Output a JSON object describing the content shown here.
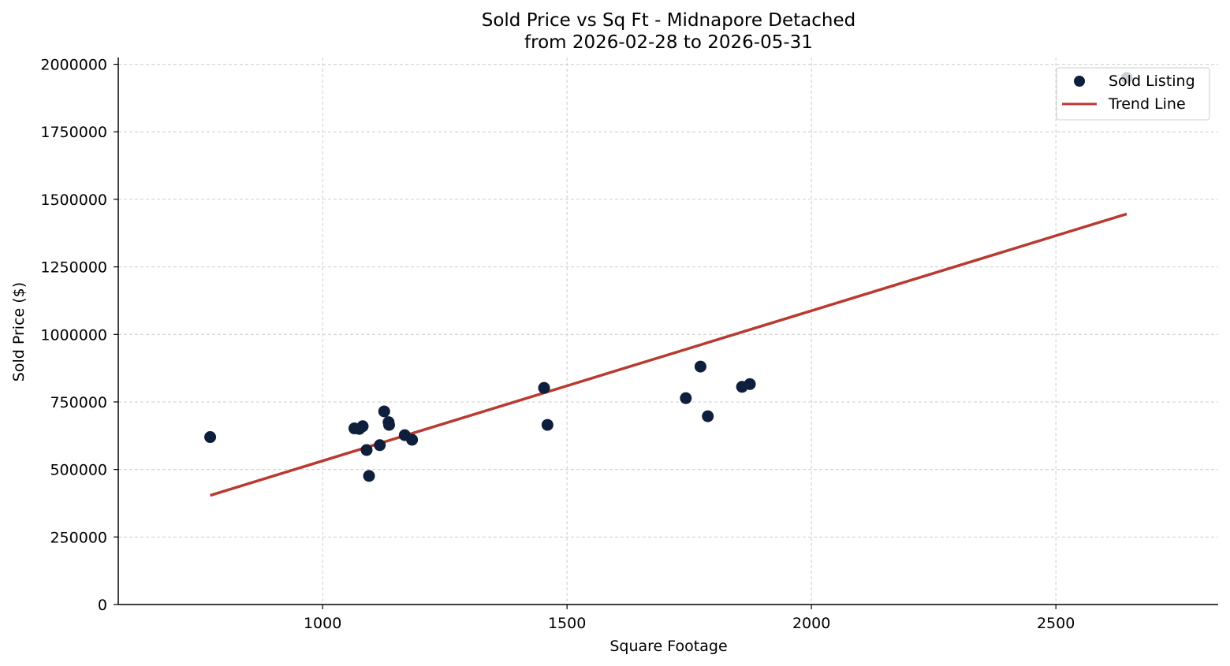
{
  "chart_data": {
    "type": "scatter",
    "title": "Sold Price vs Sq Ft - Midnapore Detached",
    "subtitle": "from 2026-02-28 to 2026-05-31",
    "xlabel": "Square Footage",
    "ylabel": "Sold Price ($)",
    "xlim": [
      582,
      2832
    ],
    "ylim": [
      0,
      2025000
    ],
    "xticks": [
      1000,
      1500,
      2000,
      2500
    ],
    "xtick_labels": [
      "1000",
      "1500",
      "2000",
      "2500"
    ],
    "yticks": [
      0,
      250000,
      500000,
      750000,
      1000000,
      1250000,
      1500000,
      1750000,
      2000000
    ],
    "ytick_labels": [
      "0",
      "250000",
      "500000",
      "750000",
      "1000000",
      "1250000",
      "1500000",
      "1750000",
      "2000000"
    ],
    "grid": true,
    "legend_position": "top-right",
    "series": [
      {
        "name": "Sold Listing",
        "kind": "scatter",
        "color": "#0d1f3c",
        "points": [
          {
            "x": 770,
            "y": 620000
          },
          {
            "x": 1065,
            "y": 652000
          },
          {
            "x": 1075,
            "y": 650000
          },
          {
            "x": 1082,
            "y": 660000
          },
          {
            "x": 1090,
            "y": 572000
          },
          {
            "x": 1095,
            "y": 476000
          },
          {
            "x": 1117,
            "y": 590000
          },
          {
            "x": 1126,
            "y": 715000
          },
          {
            "x": 1135,
            "y": 675000
          },
          {
            "x": 1136,
            "y": 665000
          },
          {
            "x": 1168,
            "y": 627000
          },
          {
            "x": 1183,
            "y": 610000
          },
          {
            "x": 1453,
            "y": 802000
          },
          {
            "x": 1460,
            "y": 665000
          },
          {
            "x": 1743,
            "y": 764000
          },
          {
            "x": 1773,
            "y": 881000
          },
          {
            "x": 1788,
            "y": 697000
          },
          {
            "x": 1858,
            "y": 806000
          },
          {
            "x": 1874,
            "y": 816000
          },
          {
            "x": 2645,
            "y": 1950000
          }
        ]
      },
      {
        "name": "Trend Line",
        "kind": "line",
        "color": "#b83a30",
        "points": [
          {
            "x": 770,
            "y": 404000
          },
          {
            "x": 2645,
            "y": 1446000
          }
        ]
      }
    ]
  }
}
